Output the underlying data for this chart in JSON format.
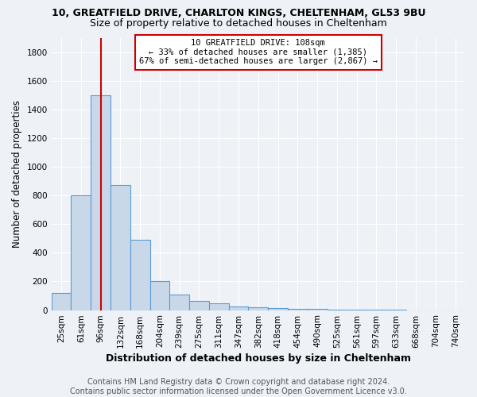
{
  "title1": "10, GREATFIELD DRIVE, CHARLTON KINGS, CHELTENHAM, GL53 9BU",
  "title2": "Size of property relative to detached houses in Cheltenham",
  "xlabel": "Distribution of detached houses by size in Cheltenham",
  "ylabel": "Number of detached properties",
  "footer1": "Contains HM Land Registry data © Crown copyright and database right 2024.",
  "footer2": "Contains public sector information licensed under the Open Government Licence v3.0.",
  "annotation_line1": "10 GREATFIELD DRIVE: 108sqm",
  "annotation_line2": "← 33% of detached houses are smaller (1,385)",
  "annotation_line3": "67% of semi-detached houses are larger (2,867) →",
  "bin_labels": [
    "25sqm",
    "61sqm",
    "96sqm",
    "132sqm",
    "168sqm",
    "204sqm",
    "239sqm",
    "275sqm",
    "311sqm",
    "347sqm",
    "382sqm",
    "418sqm",
    "454sqm",
    "490sqm",
    "525sqm",
    "561sqm",
    "597sqm",
    "633sqm",
    "668sqm",
    "704sqm",
    "740sqm"
  ],
  "bar_heights": [
    120,
    800,
    1500,
    870,
    490,
    200,
    110,
    65,
    50,
    25,
    20,
    15,
    10,
    8,
    5,
    5,
    3,
    1,
    0,
    0,
    0
  ],
  "bar_color": "#c8d8e8",
  "bar_edge_color": "#5b9bd5",
  "red_line_bin": 2,
  "red_line_color": "#cc0000",
  "ylim": [
    0,
    1900
  ],
  "yticks": [
    0,
    200,
    400,
    600,
    800,
    1000,
    1200,
    1400,
    1600,
    1800
  ],
  "background_color": "#eef2f7",
  "grid_color": "#ffffff",
  "title_fontsize": 9,
  "subtitle_fontsize": 9,
  "axis_label_fontsize": 9,
  "ylabel_fontsize": 8.5,
  "tick_fontsize": 7.5,
  "footer_fontsize": 7,
  "annot_fontsize": 7.5
}
